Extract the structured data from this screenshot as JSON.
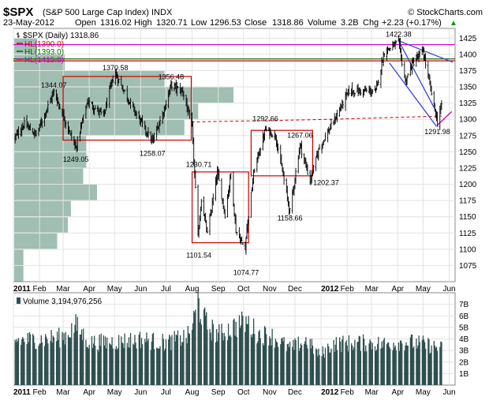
{
  "header": {
    "symbol": "$SPX",
    "name": "(S&P 500 Large Cap Index)",
    "exchange": "INDX",
    "brand": "© StockCharts.com",
    "date": "23-May-2012",
    "open_label": "Open",
    "open": "1316.02",
    "high_label": "High",
    "high": "1320.71",
    "low_label": "Low",
    "low": "1296.53",
    "close_label": "Close",
    "close": "1318.86",
    "volume_label": "Volume",
    "volume": "3.2B",
    "chg_label": "Chg",
    "chg": "+2.23 (+0.17%)",
    "chg_arrow": "▲"
  },
  "legend": [
    {
      "text": "$SPX (Daily) 1318.86",
      "color": "#000000",
      "style": "bar"
    },
    {
      "text": "HL(1390.0)",
      "color": "#cc0000",
      "style": "line"
    },
    {
      "text": "HL(1393.0)",
      "color": "#006600",
      "style": "line"
    },
    {
      "text": "HL(1415.0)",
      "color": "#cc00cc",
      "style": "line"
    }
  ],
  "volume_legend": "Volume 3,194,976,256",
  "chart_data": [
    {
      "type": "ohlc",
      "series_name": "$SPX (Daily)",
      "x_range": [
        "2011-01-01",
        "2012-06-08"
      ],
      "ylim": [
        1050,
        1440
      ],
      "y_ticks": [
        1075,
        1100,
        1125,
        1150,
        1175,
        1200,
        1225,
        1250,
        1275,
        1300,
        1325,
        1350,
        1375,
        1400,
        1425
      ],
      "x_ticks": [
        {
          "date": "2011-01-01",
          "label": "2011",
          "bold": true
        },
        {
          "date": "2011-02-01",
          "label": "Feb"
        },
        {
          "date": "2011-03-01",
          "label": "Mar"
        },
        {
          "date": "2011-04-01",
          "label": "Apr"
        },
        {
          "date": "2011-05-01",
          "label": "May"
        },
        {
          "date": "2011-06-01",
          "label": "Jun"
        },
        {
          "date": "2011-07-01",
          "label": "Jul"
        },
        {
          "date": "2011-08-01",
          "label": "Aug"
        },
        {
          "date": "2011-09-01",
          "label": "Sep"
        },
        {
          "date": "2011-10-01",
          "label": "Oct"
        },
        {
          "date": "2011-11-01",
          "label": "Nov"
        },
        {
          "date": "2011-12-01",
          "label": "Dec"
        },
        {
          "date": "2012-01-01",
          "label": "2012",
          "bold": true
        },
        {
          "date": "2012-02-01",
          "label": "Feb"
        },
        {
          "date": "2012-03-01",
          "label": "Mar"
        },
        {
          "date": "2012-04-01",
          "label": "Apr"
        },
        {
          "date": "2012-05-01",
          "label": "May"
        },
        {
          "date": "2012-06-01",
          "label": "Jun"
        }
      ],
      "close_path": [
        [
          "2011-01-03",
          1272
        ],
        [
          "2011-01-14",
          1293
        ],
        [
          "2011-01-28",
          1276
        ],
        [
          "2011-02-18",
          1343
        ],
        [
          "2011-03-01",
          1306
        ],
        [
          "2011-03-16",
          1256
        ],
        [
          "2011-03-30",
          1328
        ],
        [
          "2011-04-18",
          1305
        ],
        [
          "2011-04-29",
          1363
        ],
        [
          "2011-05-02",
          1370
        ],
        [
          "2011-05-23",
          1317
        ],
        [
          "2011-06-15",
          1265
        ],
        [
          "2011-06-30",
          1320
        ],
        [
          "2011-07-07",
          1353
        ],
        [
          "2011-07-21",
          1343
        ],
        [
          "2011-08-01",
          1287
        ],
        [
          "2011-08-08",
          1119
        ],
        [
          "2011-08-12",
          1178
        ],
        [
          "2011-08-19",
          1123
        ],
        [
          "2011-08-31",
          1218
        ],
        [
          "2011-09-09",
          1154
        ],
        [
          "2011-09-16",
          1216
        ],
        [
          "2011-09-22",
          1129
        ],
        [
          "2011-10-03",
          1099
        ],
        [
          "2011-10-04",
          1123
        ],
        [
          "2011-10-14",
          1224
        ],
        [
          "2011-10-27",
          1284
        ],
        [
          "2011-11-08",
          1275
        ],
        [
          "2011-11-25",
          1158
        ],
        [
          "2011-12-07",
          1261
        ],
        [
          "2011-12-19",
          1205
        ],
        [
          "2011-12-30",
          1257
        ],
        [
          "2012-01-13",
          1289
        ],
        [
          "2012-02-03",
          1344
        ],
        [
          "2012-03-06",
          1343
        ],
        [
          "2012-03-16",
          1404
        ],
        [
          "2012-04-02",
          1419
        ],
        [
          "2012-04-10",
          1358
        ],
        [
          "2012-04-18",
          1385
        ],
        [
          "2012-05-01",
          1405
        ],
        [
          "2012-05-18",
          1295
        ],
        [
          "2012-05-21",
          1316
        ],
        [
          "2012-05-23",
          1318.86
        ]
      ],
      "annotations": [
        {
          "date": "2011-02-18",
          "value": 1344.07,
          "label": "1344.07",
          "pos": "above"
        },
        {
          "date": "2011-03-16",
          "value": 1249.05,
          "label": "1249.05",
          "pos": "below"
        },
        {
          "date": "2011-05-02",
          "value": 1370.58,
          "label": "1370.58",
          "pos": "above"
        },
        {
          "date": "2011-06-15",
          "value": 1258.07,
          "label": "1258.07",
          "pos": "below"
        },
        {
          "date": "2011-07-07",
          "value": 1356.48,
          "label": "1356.48",
          "pos": "above"
        },
        {
          "date": "2011-07-21",
          "value": 1230.71,
          "label": "1230.71",
          "pos": "right"
        },
        {
          "date": "2011-08-09",
          "value": 1101.54,
          "label": "1101.54",
          "pos": "below"
        },
        {
          "date": "2011-10-04",
          "value": 1074.77,
          "label": "1074.77",
          "pos": "below"
        },
        {
          "date": "2011-10-27",
          "value": 1292.66,
          "label": "1292.66",
          "pos": "above"
        },
        {
          "date": "2011-11-25",
          "value": 1158.66,
          "label": "1158.66",
          "pos": "below"
        },
        {
          "date": "2011-12-07",
          "value": 1267.06,
          "label": "1267.06",
          "pos": "above"
        },
        {
          "date": "2011-12-19",
          "value": 1202.37,
          "label": "1202.37",
          "pos": "right"
        },
        {
          "date": "2012-04-02",
          "value": 1422.38,
          "label": "1422.38",
          "pos": "above"
        },
        {
          "date": "2012-05-18",
          "value": 1291.98,
          "label": "1291.98",
          "pos": "below"
        }
      ],
      "horizontal_lines": [
        {
          "value": 1390.0,
          "color": "#cc0000"
        },
        {
          "value": 1393.0,
          "color": "#006600"
        },
        {
          "value": 1415.0,
          "color": "#cc00cc"
        }
      ],
      "boxes": [
        {
          "x0": "2011-03-01",
          "x1": "2011-07-31",
          "y0": 1268,
          "y1": 1366,
          "color": "#cc0000"
        },
        {
          "x0": "2011-08-01",
          "x1": "2011-10-07",
          "y0": 1110,
          "y1": 1219,
          "color": "#cc0000"
        },
        {
          "x0": "2011-10-10",
          "x1": "2011-12-22",
          "y0": 1213,
          "y1": 1283,
          "color": "#cc0000"
        }
      ],
      "dashed_lines": [
        {
          "points": [
            [
              "2011-07-31",
              1296
            ],
            [
              "2011-10-27",
              1298
            ],
            [
              "2012-01-13",
              1300
            ],
            [
              "2012-05-23",
              1305
            ]
          ],
          "color": "#cc0000"
        }
      ],
      "trend_lines": [
        {
          "points": [
            [
              "2012-03-22",
              1387
            ],
            [
              "2012-05-17",
              1289
            ]
          ],
          "color": "#3344dd"
        },
        {
          "points": [
            [
              "2012-04-02",
              1421
            ],
            [
              "2012-05-17",
              1311
            ]
          ],
          "color": "#3344dd"
        },
        {
          "points": [
            [
              "2012-04-02",
              1421
            ],
            [
              "2012-06-05",
              1388
            ]
          ],
          "color": "#3344dd"
        },
        {
          "points": [
            [
              "2012-05-18",
              1291
            ],
            [
              "2012-06-04",
              1312
            ]
          ],
          "color": "#cc00cc"
        }
      ],
      "volume_by_price": [
        {
          "low": 1050,
          "high": 1100,
          "volume": 0.6
        },
        {
          "low": 1100,
          "high": 1125,
          "volume": 2.8
        },
        {
          "low": 1125,
          "high": 1150,
          "volume": 3.5
        },
        {
          "low": 1150,
          "high": 1175,
          "volume": 3.7
        },
        {
          "low": 1175,
          "high": 1200,
          "volume": 5.4
        },
        {
          "low": 1200,
          "high": 1225,
          "volume": 4.5
        },
        {
          "low": 1225,
          "high": 1250,
          "volume": 4.7
        },
        {
          "low": 1250,
          "high": 1275,
          "volume": 4.7
        },
        {
          "low": 1275,
          "high": 1300,
          "volume": 11.1
        },
        {
          "low": 1300,
          "high": 1325,
          "volume": 12.0
        },
        {
          "low": 1325,
          "high": 1350,
          "volume": 14.3
        },
        {
          "low": 1350,
          "high": 1375,
          "volume": 9.8
        },
        {
          "low": 1375,
          "high": 1400,
          "volume": 3.3
        },
        {
          "low": 1400,
          "high": 1425,
          "volume": 1.5
        }
      ]
    },
    {
      "type": "bar",
      "series_name": "Volume",
      "ylim": [
        0,
        8
      ],
      "y_ticks": [
        {
          "value": 1,
          "label": "1B"
        },
        {
          "value": 2,
          "label": "2B"
        },
        {
          "value": 3,
          "label": "3B"
        },
        {
          "value": 4,
          "label": "4B"
        },
        {
          "value": 5,
          "label": "5B"
        },
        {
          "value": 6,
          "label": "6B"
        },
        {
          "value": 7,
          "label": "7B"
        }
      ],
      "volume_profile": [
        [
          "2011-01-03",
          3.9
        ],
        [
          "2011-02-01",
          4.0
        ],
        [
          "2011-03-01",
          4.2
        ],
        [
          "2011-03-16",
          5.2
        ],
        [
          "2011-04-01",
          3.7
        ],
        [
          "2011-05-01",
          3.8
        ],
        [
          "2011-06-01",
          4.0
        ],
        [
          "2011-07-01",
          3.7
        ],
        [
          "2011-07-28",
          4.3
        ],
        [
          "2011-08-05",
          6.2
        ],
        [
          "2011-08-08",
          7.6
        ],
        [
          "2011-08-10",
          6.6
        ],
        [
          "2011-08-19",
          5.2
        ],
        [
          "2011-09-01",
          4.4
        ],
        [
          "2011-09-22",
          5.2
        ],
        [
          "2011-10-04",
          5.5
        ],
        [
          "2011-10-20",
          4.4
        ],
        [
          "2011-11-01",
          4.4
        ],
        [
          "2011-11-25",
          3.2
        ],
        [
          "2011-12-15",
          3.9
        ],
        [
          "2011-12-30",
          2.6
        ],
        [
          "2012-01-15",
          3.6
        ],
        [
          "2012-02-15",
          3.7
        ],
        [
          "2012-03-15",
          3.6
        ],
        [
          "2012-04-10",
          3.8
        ],
        [
          "2012-05-01",
          3.6
        ],
        [
          "2012-05-23",
          3.2
        ]
      ],
      "last_value": 3.19
    }
  ]
}
